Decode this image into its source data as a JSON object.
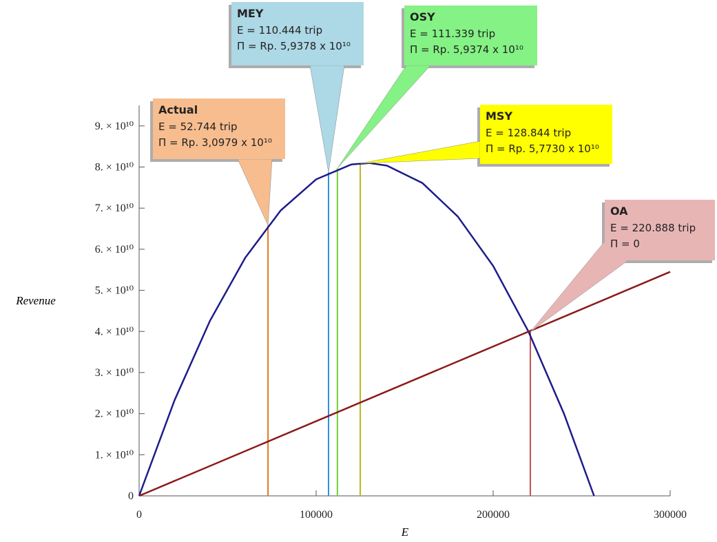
{
  "chart_data": {
    "type": "line",
    "x_label": "E",
    "y_label": "Revenue",
    "xlim": [
      0,
      300000
    ],
    "ylim": [
      0,
      95000000000
    ],
    "xticks": [
      0,
      100000,
      200000,
      300000
    ],
    "yticks": [
      0,
      {
        "value": 10000000000,
        "label": "1. × 10¹⁰"
      },
      {
        "value": 20000000000,
        "label": "2. × 10¹⁰"
      },
      {
        "value": 30000000000,
        "label": "3. × 10¹⁰"
      },
      {
        "value": 40000000000,
        "label": "4. × 10¹⁰"
      },
      {
        "value": 50000000000,
        "label": "5. × 10¹⁰"
      },
      {
        "value": 60000000000,
        "label": "6. × 10¹⁰"
      },
      {
        "value": 70000000000,
        "label": "7. × 10¹⁰"
      },
      {
        "value": 80000000000,
        "label": "8. × 10¹⁰"
      },
      {
        "value": 90000000000,
        "label": "9. × 10¹⁰"
      }
    ],
    "series": [
      {
        "color": "#1c1c8a",
        "x": [
          0,
          20000,
          40000,
          60000,
          80000,
          100000,
          120000,
          130000,
          140000,
          160000,
          180000,
          200000,
          220000,
          240000,
          257000
        ],
        "values": [
          0,
          23250000000,
          42580000000,
          57980000000,
          69450000000,
          77010000000,
          80640000000,
          80980000000,
          80340000000,
          76120000000,
          67980000000,
          55920000000,
          39930000000,
          20010000000,
          0
        ]
      },
      {
        "color": "#8b1a1a",
        "x": [
          0,
          300000
        ],
        "values": [
          0,
          54500000000
        ]
      }
    ],
    "annotations": [
      {
        "title": "Actual",
        "lines": [
          "E = 52.744 trip",
          "Π = Rp. 3,0979 x 10¹⁰"
        ],
        "x": 72800,
        "y": 65800000000,
        "color": "#f7bd8f",
        "line_color": "#e07820"
      },
      {
        "title": "MEY",
        "lines": [
          "E = 110.444 trip",
          "Π = Rp. 5,9378 x 10¹⁰"
        ],
        "x": 107000,
        "y": 78700000000,
        "color": "#add8e6",
        "line_color": "#3090e0"
      },
      {
        "title": "OSY",
        "lines": [
          "E = 111.339 trip",
          "Π = Rp. 5,9374 x 10¹⁰"
        ],
        "x": 112000,
        "y": 79700000000,
        "color": "#84f284",
        "line_color": "#70d030"
      },
      {
        "title": "MSY",
        "lines": [
          "E = 128.844 trip",
          "Π = Rp. 5,7730 x 10¹⁰"
        ],
        "x": 124900,
        "y": 80900000000,
        "color": "#ffff00",
        "line_color": "#b8b820"
      },
      {
        "title": "OA",
        "lines": [
          "E = 220.888 trip",
          "Π = 0"
        ],
        "x": 221000,
        "y": 39900000000,
        "color": "#e8b5b5",
        "line_color": "#c05050"
      }
    ]
  }
}
